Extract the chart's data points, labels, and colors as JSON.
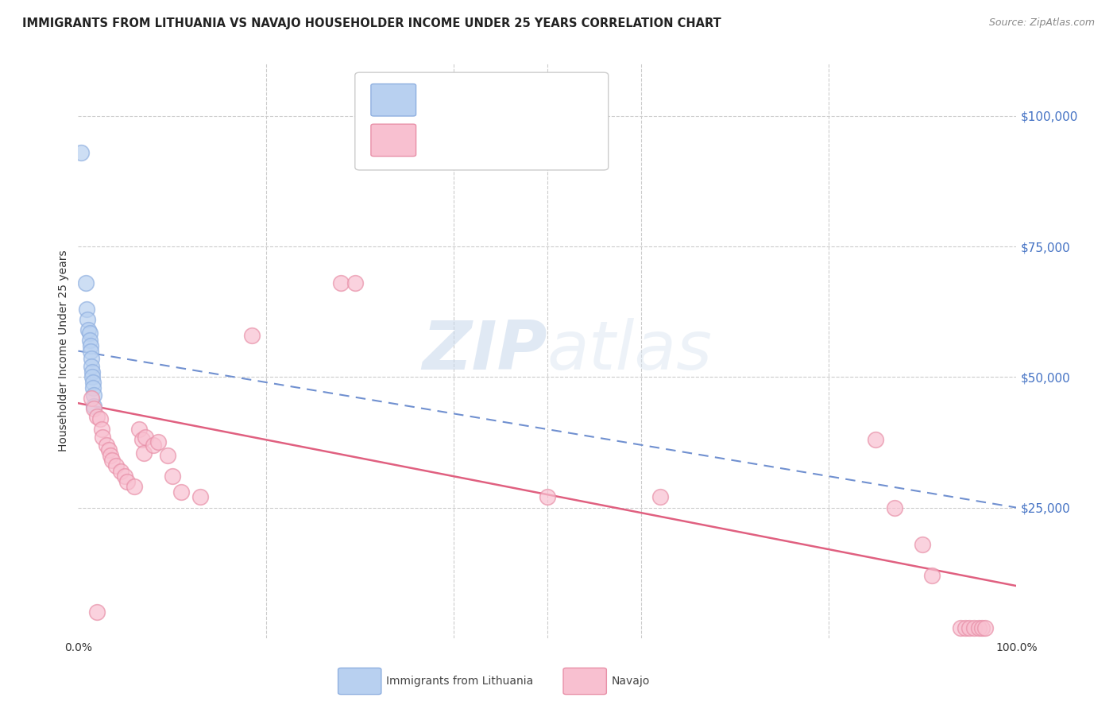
{
  "title": "IMMIGRANTS FROM LITHUANIA VS NAVAJO HOUSEHOLDER INCOME UNDER 25 YEARS CORRELATION CHART",
  "source": "Source: ZipAtlas.com",
  "ylabel": "Householder Income Under 25 years",
  "xlim": [
    0,
    1.0
  ],
  "ylim": [
    0,
    110000
  ],
  "yticks": [
    0,
    25000,
    50000,
    75000,
    100000
  ],
  "ytick_labels": [
    "",
    "$25,000",
    "$50,000",
    "$75,000",
    "$100,000"
  ],
  "watermark": "ZIPatlas",
  "blue_points": [
    [
      0.003,
      93000
    ],
    [
      0.008,
      68000
    ],
    [
      0.009,
      63000
    ],
    [
      0.01,
      61000
    ],
    [
      0.011,
      59000
    ],
    [
      0.012,
      58500
    ],
    [
      0.012,
      57000
    ],
    [
      0.013,
      56000
    ],
    [
      0.013,
      55000
    ],
    [
      0.014,
      53500
    ],
    [
      0.014,
      52000
    ],
    [
      0.015,
      51000
    ],
    [
      0.015,
      50000
    ],
    [
      0.016,
      49000
    ],
    [
      0.016,
      48000
    ],
    [
      0.017,
      46500
    ],
    [
      0.017,
      44500
    ]
  ],
  "pink_points": [
    [
      0.014,
      46000
    ],
    [
      0.017,
      44000
    ],
    [
      0.02,
      42500
    ],
    [
      0.023,
      42000
    ],
    [
      0.025,
      40000
    ],
    [
      0.026,
      38500
    ],
    [
      0.03,
      37000
    ],
    [
      0.033,
      36000
    ],
    [
      0.034,
      35000
    ],
    [
      0.036,
      34000
    ],
    [
      0.04,
      33000
    ],
    [
      0.045,
      32000
    ],
    [
      0.05,
      31000
    ],
    [
      0.052,
      30000
    ],
    [
      0.06,
      29000
    ],
    [
      0.065,
      40000
    ],
    [
      0.068,
      38000
    ],
    [
      0.07,
      35500
    ],
    [
      0.072,
      38500
    ],
    [
      0.08,
      37000
    ],
    [
      0.085,
      37500
    ],
    [
      0.095,
      35000
    ],
    [
      0.1,
      31000
    ],
    [
      0.11,
      28000
    ],
    [
      0.02,
      5000
    ],
    [
      0.13,
      27000
    ],
    [
      0.28,
      68000
    ],
    [
      0.295,
      68000
    ],
    [
      0.185,
      58000
    ],
    [
      0.5,
      27000
    ],
    [
      0.62,
      27000
    ],
    [
      0.85,
      38000
    ],
    [
      0.87,
      25000
    ],
    [
      0.9,
      18000
    ],
    [
      0.91,
      12000
    ],
    [
      0.94,
      2000
    ],
    [
      0.945,
      2000
    ],
    [
      0.95,
      2000
    ],
    [
      0.955,
      2000
    ],
    [
      0.96,
      2000
    ],
    [
      0.963,
      2000
    ],
    [
      0.967,
      2000
    ]
  ],
  "blue_trendline_x": [
    0.0,
    1.0
  ],
  "blue_trendline_y": [
    55000,
    25000
  ],
  "pink_trendline_x": [
    0.0,
    1.0
  ],
  "pink_trendline_y": [
    45000,
    10000
  ],
  "background_color": "#ffffff",
  "grid_color": "#cccccc",
  "title_fontsize": 11,
  "axis_label_fontsize": 10
}
